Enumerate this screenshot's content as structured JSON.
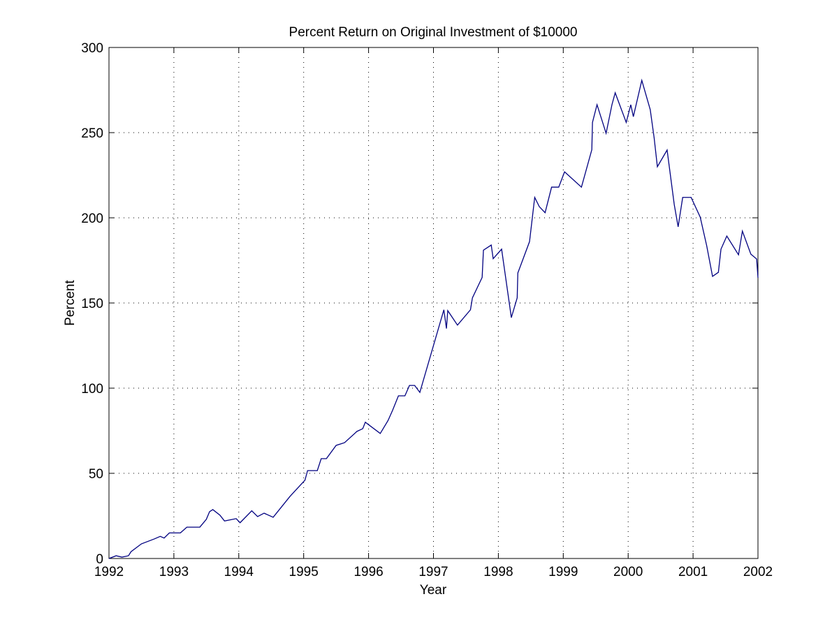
{
  "chart_data": {
    "type": "line",
    "title": "Percent Return on Original Investment of $10000",
    "xlabel": "Year",
    "ylabel": "Percent",
    "xlim": [
      1992,
      2002
    ],
    "xticks": [
      1992,
      1993,
      1994,
      1995,
      1996,
      1997,
      1998,
      1999,
      2000,
      2001,
      2002
    ],
    "ylim": [
      0,
      300
    ],
    "yticks": [
      0,
      50,
      100,
      150,
      200,
      250,
      300
    ],
    "grid": true,
    "series": [
      {
        "color": "#000080",
        "x": [
          1992.0,
          1992.11,
          1992.2,
          1992.3,
          1992.34,
          1992.5,
          1992.7,
          1992.79,
          1992.85,
          1992.93,
          1993.1,
          1993.2,
          1993.4,
          1993.5,
          1993.55,
          1993.6,
          1993.71,
          1993.78,
          1993.96,
          1994.02,
          1994.2,
          1994.29,
          1994.39,
          1994.53,
          1994.79,
          1995.02,
          1995.06,
          1995.21,
          1995.27,
          1995.35,
          1995.5,
          1995.63,
          1995.82,
          1995.91,
          1995.95,
          1996.18,
          1996.3,
          1996.37,
          1996.46,
          1996.56,
          1996.63,
          1996.71,
          1996.79,
          1997.16,
          1997.2,
          1997.22,
          1997.37,
          1997.57,
          1997.6,
          1997.75,
          1997.77,
          1997.89,
          1997.92,
          1998.05,
          1998.2,
          1998.29,
          1998.3,
          1998.48,
          1998.56,
          1998.63,
          1998.72,
          1998.82,
          1998.93,
          1999.02,
          1999.28,
          1999.44,
          1999.45,
          1999.52,
          1999.66,
          1999.75,
          1999.8,
          1999.97,
          2000.04,
          2000.08,
          2000.21,
          2000.34,
          2000.4,
          2000.45,
          2000.6,
          2000.71,
          2000.77,
          2000.84,
          2000.97,
          2001.11,
          2001.21,
          2001.3,
          2001.39,
          2001.43,
          2001.52,
          2001.7,
          2001.76,
          2001.89,
          2001.98,
          2002.0
        ],
        "values": [
          0,
          1.6,
          0.8,
          1.6,
          4,
          8.6,
          11.5,
          13,
          12,
          15,
          15,
          18.4,
          18.4,
          23,
          27.5,
          28.7,
          25.4,
          22,
          23.4,
          21,
          28,
          24.6,
          26.6,
          24.2,
          36.5,
          46,
          51.6,
          51.6,
          58.6,
          58.6,
          66.4,
          68,
          74.6,
          76.2,
          80,
          73.4,
          81,
          87,
          95.5,
          95.5,
          101.6,
          101.6,
          97.5,
          146,
          135,
          145.5,
          137,
          146,
          153,
          165,
          181,
          184,
          176,
          181.6,
          141.4,
          153,
          167.6,
          186,
          212,
          206.6,
          203,
          218,
          218,
          227,
          218,
          240,
          256,
          266.4,
          249.6,
          266.4,
          273.4,
          256,
          266.4,
          259.4,
          280.7,
          263.5,
          247,
          230,
          239.8,
          207.8,
          194.7,
          212,
          212,
          200.4,
          183.6,
          165.6,
          168,
          181.6,
          189.3,
          178.3,
          192.2,
          178.7,
          175.8,
          164.8
        ]
      }
    ]
  }
}
